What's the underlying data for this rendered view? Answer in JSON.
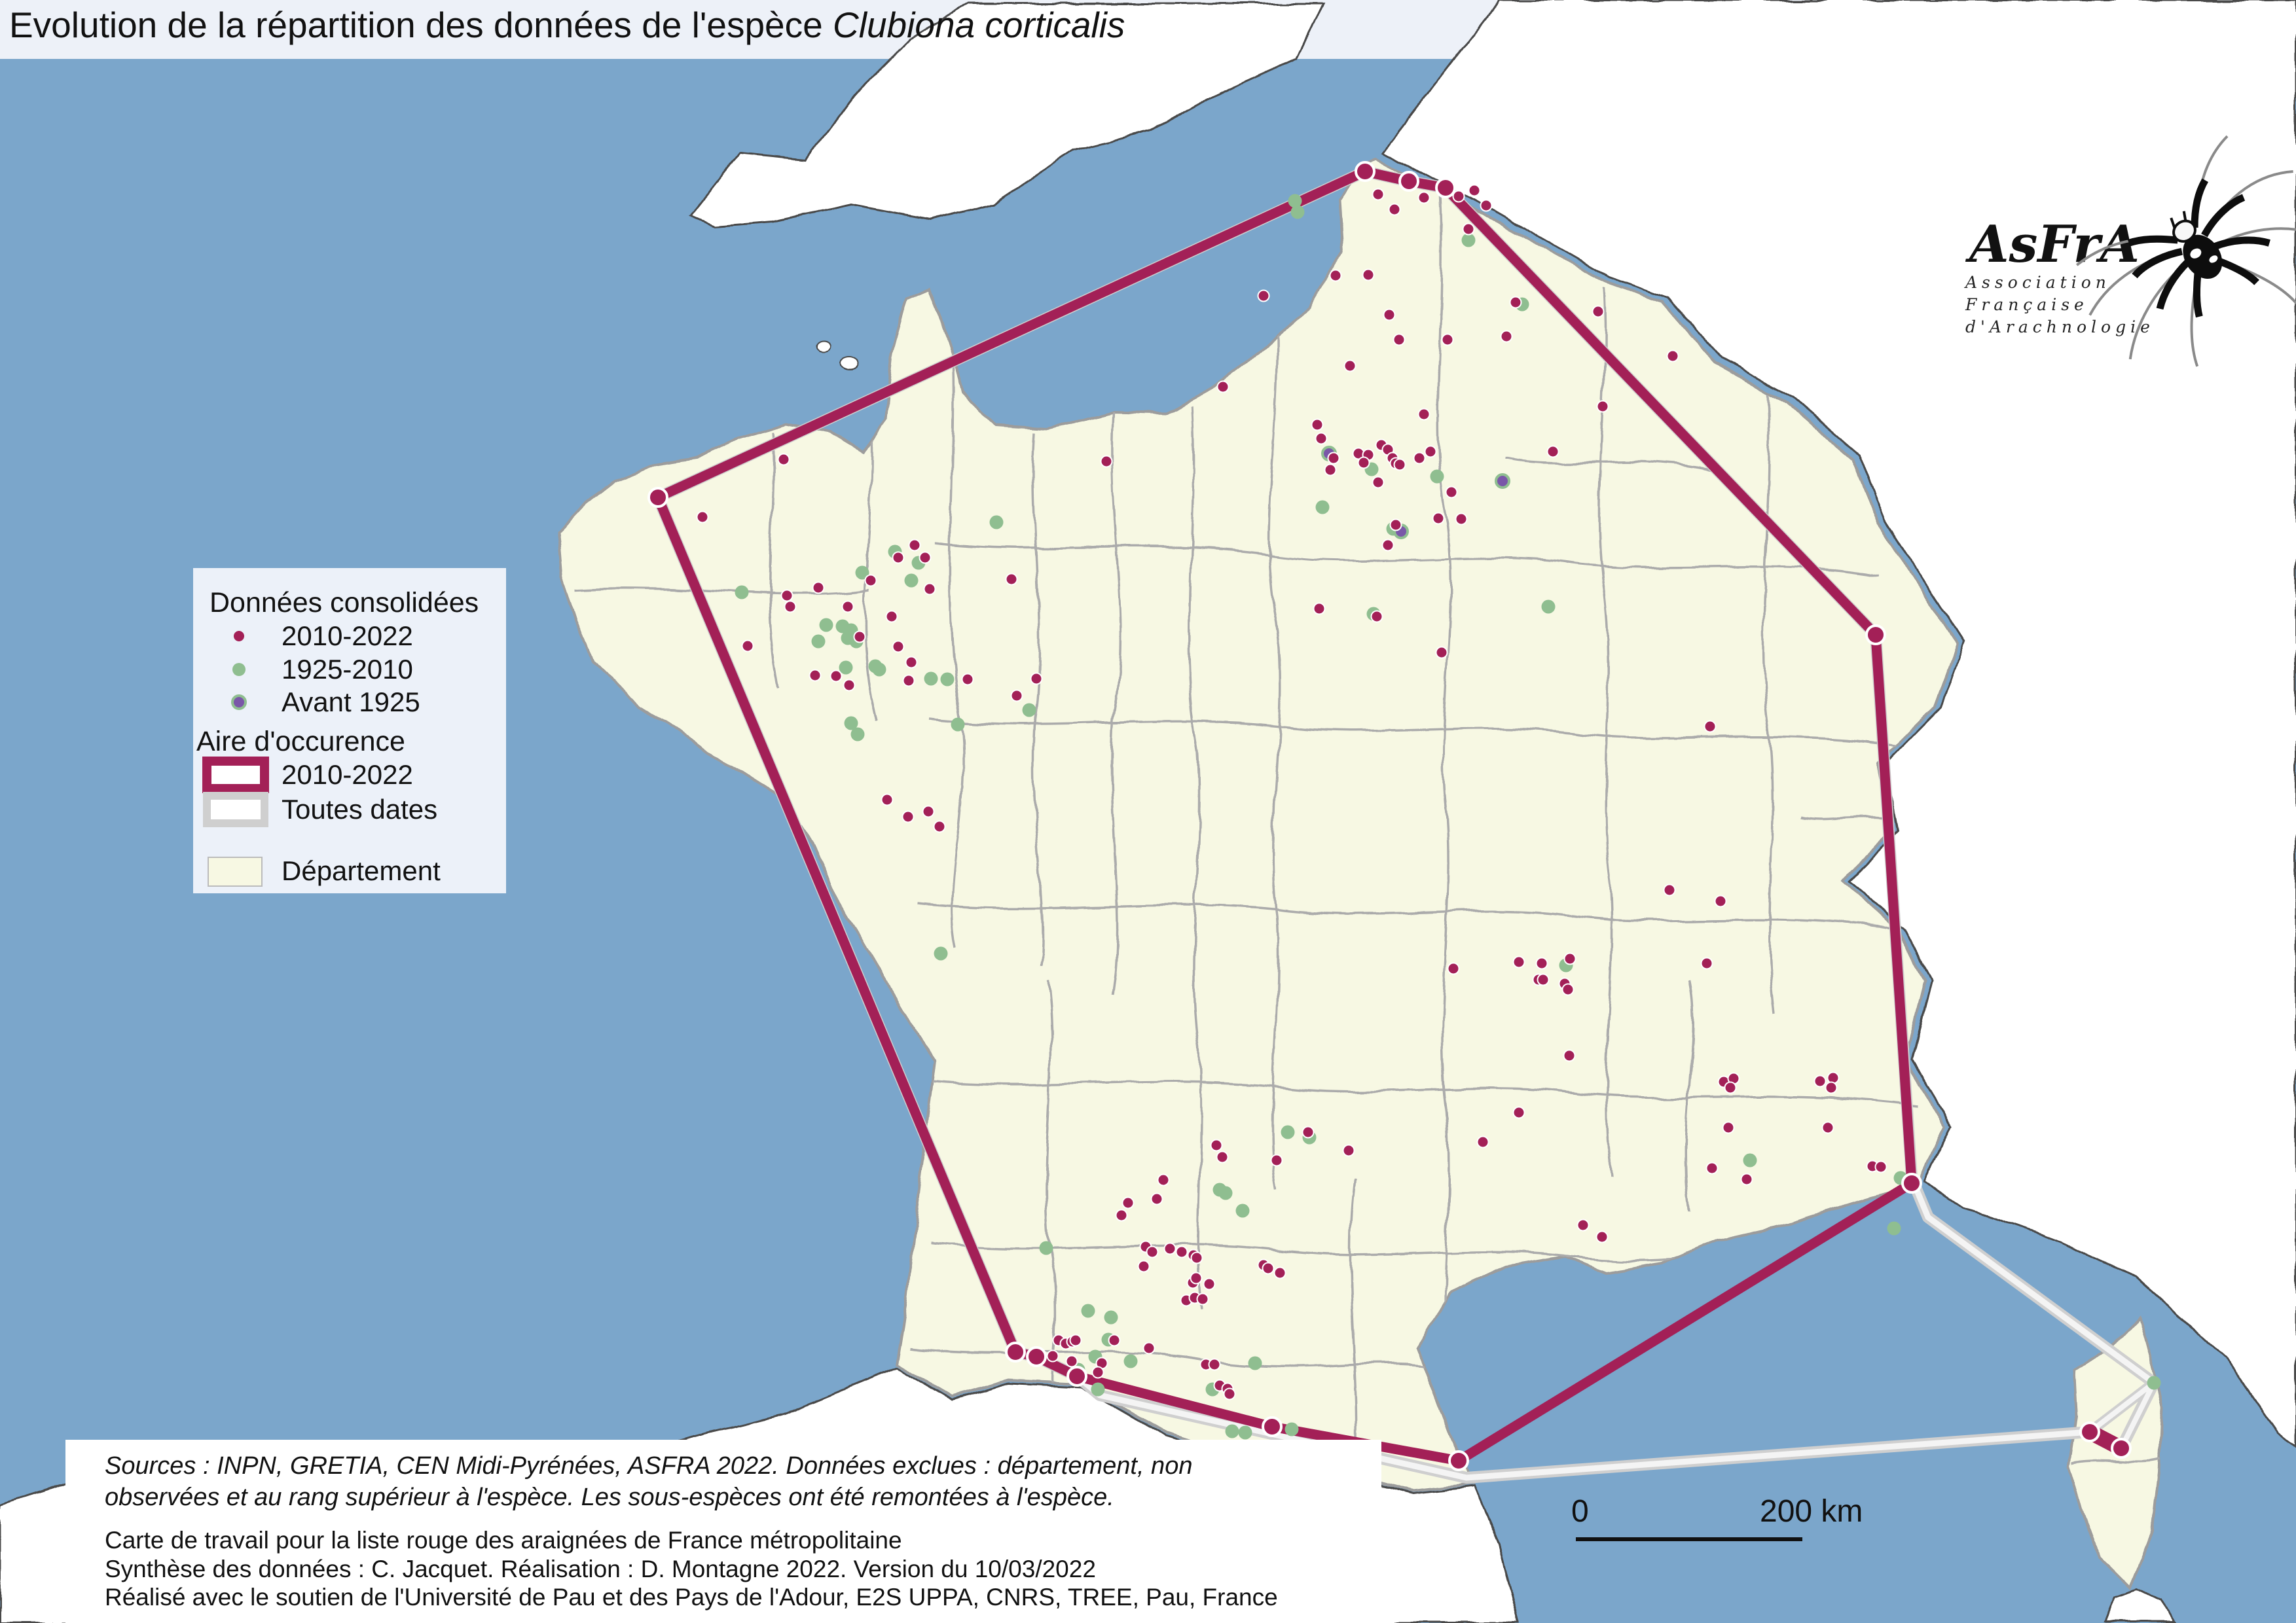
{
  "title": {
    "prefix": "Evolution de la répartition des données de l'espèce ",
    "species": "Clubiona corticalis"
  },
  "legend": {
    "consolidated_header": "Données consolidées",
    "items": [
      {
        "label": "2010-2022",
        "color": "#A32057"
      },
      {
        "label": "1925-2010",
        "color": "#8FBE90"
      },
      {
        "label": "Avant 1925",
        "color": "#7A57A8",
        "ring": "#8FBE90"
      }
    ],
    "occurrence_header": "Aire d'occurence",
    "occurrence_items": [
      {
        "label": "2010-2022",
        "color": "#A32057"
      },
      {
        "label": "Toutes dates",
        "color": "#CFCFCF"
      }
    ],
    "department_label": "Département",
    "department_fill": "#F7F8E3"
  },
  "logo": {
    "acronym": "AsFrA",
    "lines": [
      "Association",
      "Française",
      "d'Arachnologie"
    ]
  },
  "scalebar": {
    "start_label": "0",
    "end_label": "200 km"
  },
  "credits": {
    "sources_italic": [
      "Sources : INPN, GRETIA, CEN Midi-Pyrénées, ASFRA 2022. Données exclues : département, non",
      "observées et au rang supérieur à l'espèce. Les sous-espèces ont été remontées à l'espèce."
    ],
    "lines": [
      "Carte de travail pour la liste rouge des araignées de France métropolitaine",
      "Synthèse des données : C. Jacquet. Réalisation : D. Montagne 2022. Version du 10/03/2022",
      "Réalisé avec le soutien de l'Université de Pau et des Pays de l'Adour, E2S UPPA, CNRS, TREE, Pau, France"
    ]
  },
  "map": {
    "colors": {
      "sea": "#7BA6CB",
      "france_fill": "#F7F8E3",
      "france_border": "#9C9C9C",
      "foreign_fill": "#FFFFFF",
      "foreign_border": "#4A4A4A",
      "department_border": "#ABABAB",
      "hull_recent": "#A32057",
      "hull_all_outer": "#CFCFCF",
      "hull_all_inner": "#F4F4F4",
      "dot_recent": "#A32057",
      "dot_old": "#8FBE90",
      "dot_oldest": "#7A57A8",
      "header_strip": "#EDF1F8",
      "legend_bg": "#ECF1F9"
    },
    "hull_2010_2022": [
      [
        1005,
        760
      ],
      [
        2085,
        262
      ],
      [
        2152,
        277
      ],
      [
        2208,
        287
      ],
      [
        2865,
        970
      ],
      [
        2920,
        1808
      ],
      [
        2228,
        2232
      ],
      [
        1943,
        2180
      ],
      [
        1645,
        2103
      ],
      [
        1583,
        2073
      ],
      [
        1551,
        2066
      ]
    ],
    "hull_2010_2022_corsica": [
      [
        3192,
        2188
      ],
      [
        3240,
        2213
      ]
    ],
    "hull_all_dates": [
      [
        1005,
        760
      ],
      [
        2085,
        262
      ],
      [
        2152,
        277
      ],
      [
        2208,
        287
      ],
      [
        2865,
        970
      ],
      [
        2920,
        1800
      ],
      [
        2945,
        1860
      ],
      [
        3290,
        2113
      ],
      [
        3240,
        2213
      ],
      [
        3192,
        2188
      ],
      [
        2240,
        2258
      ],
      [
        1680,
        2132
      ],
      [
        1645,
        2103
      ],
      [
        1583,
        2073
      ],
      [
        1551,
        2066
      ]
    ],
    "hull_all_dates_corsica": [
      [
        3290,
        2113
      ],
      [
        3192,
        2188
      ],
      [
        3240,
        2213
      ]
    ],
    "points_2010_2022": [
      [
        2105,
        297
      ],
      [
        2130,
        320
      ],
      [
        2175,
        302
      ],
      [
        2228,
        300
      ],
      [
        2252,
        291
      ],
      [
        2270,
        314
      ],
      [
        2243,
        350
      ],
      [
        1930,
        452
      ],
      [
        2040,
        421
      ],
      [
        2090,
        420
      ],
      [
        2122,
        481
      ],
      [
        2137,
        519
      ],
      [
        2211,
        519
      ],
      [
        2301,
        514
      ],
      [
        2441,
        476
      ],
      [
        2062,
        559
      ],
      [
        1868,
        591
      ],
      [
        2012,
        649
      ],
      [
        2448,
        621
      ],
      [
        2555,
        544
      ],
      [
        2315,
        462
      ],
      [
        2018,
        670
      ],
      [
        2037,
        700
      ],
      [
        2032,
        718
      ],
      [
        2075,
        693
      ],
      [
        2090,
        695
      ],
      [
        2083,
        707
      ],
      [
        2110,
        680
      ],
      [
        2120,
        687
      ],
      [
        2127,
        700
      ],
      [
        2132,
        708
      ],
      [
        2138,
        710
      ],
      [
        2105,
        737
      ],
      [
        2175,
        633
      ],
      [
        2168,
        700
      ],
      [
        2185,
        690
      ],
      [
        2217,
        752
      ],
      [
        2232,
        793
      ],
      [
        2197,
        792
      ],
      [
        2132,
        802
      ],
      [
        2120,
        833
      ],
      [
        2015,
        930
      ],
      [
        2103,
        942
      ],
      [
        2202,
        997
      ],
      [
        2372,
        690
      ],
      [
        1690,
        705
      ],
      [
        1545,
        885
      ],
      [
        1397,
        833
      ],
      [
        1372,
        852
      ],
      [
        1413,
        852
      ],
      [
        1330,
        887
      ],
      [
        1250,
        898
      ],
      [
        1202,
        910
      ],
      [
        1207,
        927
      ],
      [
        1295,
        927
      ],
      [
        1362,
        942
      ],
      [
        1420,
        900
      ],
      [
        1313,
        973
      ],
      [
        1372,
        988
      ],
      [
        1392,
        1012
      ],
      [
        1277,
        1033
      ],
      [
        1297,
        1047
      ],
      [
        1388,
        1040
      ],
      [
        1478,
        1038
      ],
      [
        1583,
        1037
      ],
      [
        1553,
        1063
      ],
      [
        1197,
        702
      ],
      [
        1073,
        790
      ],
      [
        1142,
        987
      ],
      [
        1245,
        1032
      ],
      [
        1355,
        1222
      ],
      [
        1387,
        1248
      ],
      [
        1418,
        1240
      ],
      [
        1435,
        1263
      ],
      [
        1858,
        1750
      ],
      [
        1867,
        1768
      ],
      [
        1950,
        1773
      ],
      [
        1998,
        1730
      ],
      [
        2060,
        1758
      ],
      [
        2612,
        1110
      ],
      [
        2550,
        1360
      ],
      [
        2628,
        1377
      ],
      [
        2220,
        1480
      ],
      [
        2320,
        1470
      ],
      [
        2355,
        1472
      ],
      [
        2398,
        1465
      ],
      [
        2350,
        1497
      ],
      [
        2357,
        1497
      ],
      [
        2390,
        1503
      ],
      [
        2395,
        1512
      ],
      [
        2607,
        1472
      ],
      [
        2397,
        1613
      ],
      [
        2633,
        1653
      ],
      [
        2648,
        1648
      ],
      [
        2643,
        1662
      ],
      [
        2320,
        1700
      ],
      [
        2640,
        1723
      ],
      [
        2265,
        1745
      ],
      [
        2780,
        1652
      ],
      [
        2800,
        1647
      ],
      [
        2797,
        1662
      ],
      [
        2792,
        1723
      ],
      [
        2615,
        1785
      ],
      [
        2668,
        1802
      ],
      [
        2860,
        1782
      ],
      [
        2873,
        1783
      ],
      [
        2418,
        1872
      ],
      [
        2447,
        1890
      ],
      [
        1777,
        1803
      ],
      [
        1767,
        1832
      ],
      [
        1723,
        1838
      ],
      [
        1713,
        1857
      ],
      [
        1750,
        1905
      ],
      [
        1760,
        1913
      ],
      [
        1787,
        1908
      ],
      [
        1805,
        1913
      ],
      [
        1823,
        1918
      ],
      [
        1828,
        1922
      ],
      [
        1747,
        1935
      ],
      [
        1822,
        1960
      ],
      [
        1827,
        1953
      ],
      [
        1847,
        1962
      ],
      [
        1812,
        1987
      ],
      [
        1825,
        1983
      ],
      [
        1837,
        1985
      ],
      [
        1930,
        1933
      ],
      [
        1937,
        1938
      ],
      [
        1955,
        1945
      ],
      [
        1617,
        2048
      ],
      [
        1628,
        2053
      ],
      [
        1638,
        2050
      ],
      [
        1643,
        2048
      ],
      [
        1608,
        2072
      ],
      [
        1637,
        2080
      ],
      [
        1702,
        2048
      ],
      [
        1683,
        2083
      ],
      [
        1677,
        2097
      ],
      [
        1755,
        2060
      ],
      [
        1842,
        2085
      ],
      [
        1855,
        2085
      ],
      [
        1863,
        2117
      ],
      [
        1875,
        2122
      ],
      [
        1878,
        2130
      ]
    ],
    "points_1925_2010": [
      [
        1978,
        307
      ],
      [
        1982,
        324
      ],
      [
        2243,
        367
      ],
      [
        2325,
        465
      ],
      [
        1522,
        798
      ],
      [
        2095,
        717
      ],
      [
        2020,
        775
      ],
      [
        2128,
        808
      ],
      [
        2195,
        728
      ],
      [
        2098,
        938
      ],
      [
        2365,
        927
      ],
      [
        1367,
        843
      ],
      [
        1403,
        860
      ],
      [
        1392,
        887
      ],
      [
        1317,
        875
      ],
      [
        1262,
        955
      ],
      [
        1250,
        980
      ],
      [
        1292,
        1020
      ],
      [
        1300,
        1105
      ],
      [
        1310,
        1122
      ],
      [
        1422,
        1037
      ],
      [
        1447,
        1038
      ],
      [
        1463,
        1107
      ],
      [
        1572,
        1085
      ],
      [
        1437,
        1457
      ],
      [
        1133,
        905
      ],
      [
        1287,
        957
      ],
      [
        1300,
        963
      ],
      [
        1295,
        975
      ],
      [
        1308,
        980
      ],
      [
        1337,
        1018
      ],
      [
        1343,
        1023
      ],
      [
        1967,
        1730
      ],
      [
        2000,
        1738
      ],
      [
        1863,
        1818
      ],
      [
        1872,
        1823
      ],
      [
        1898,
        1850
      ],
      [
        1598,
        1907
      ],
      [
        1662,
        2003
      ],
      [
        1697,
        2013
      ],
      [
        1693,
        2047
      ],
      [
        1673,
        2073
      ],
      [
        1647,
        2093
      ],
      [
        1647,
        2102
      ],
      [
        1677,
        2123
      ],
      [
        1727,
        2080
      ],
      [
        1852,
        2123
      ],
      [
        1917,
        2083
      ],
      [
        1882,
        2187
      ],
      [
        1902,
        2189
      ],
      [
        1973,
        2184
      ],
      [
        2673,
        1773
      ],
      [
        2893,
        1877
      ],
      [
        2903,
        1800
      ],
      [
        2392,
        1475
      ],
      [
        3290,
        2113
      ]
    ],
    "points_avant_1925": [
      [
        2030,
        693
      ],
      [
        2295,
        735
      ],
      [
        2140,
        812
      ]
    ]
  }
}
